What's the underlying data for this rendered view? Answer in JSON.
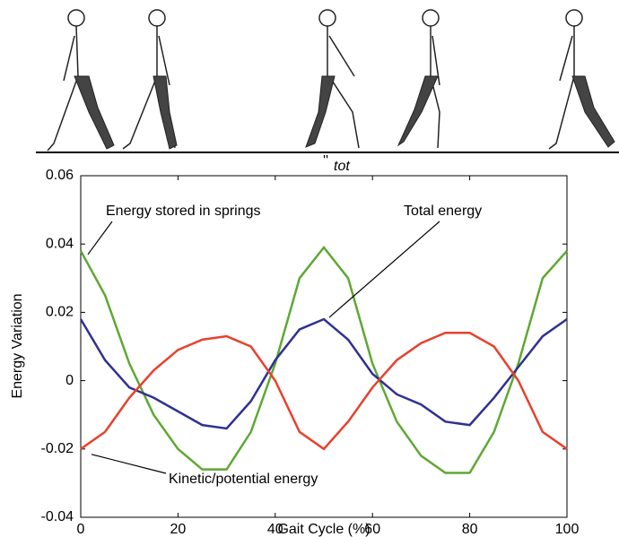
{
  "chart_data": {
    "type": "line",
    "title_fragment": "tot",
    "xlabel": "Gait Cycle (%)",
    "ylabel": "Energy Variation",
    "x": [
      0,
      5,
      10,
      15,
      20,
      25,
      30,
      35,
      40,
      45,
      50,
      55,
      60,
      65,
      70,
      75,
      80,
      85,
      90,
      95,
      100
    ],
    "series": [
      {
        "name": "Energy stored in springs",
        "color": "#5ea832",
        "values": [
          0.038,
          0.025,
          0.005,
          -0.01,
          -0.02,
          -0.026,
          -0.026,
          -0.015,
          0.005,
          0.03,
          0.039,
          0.03,
          0.005,
          -0.012,
          -0.022,
          -0.027,
          -0.027,
          -0.015,
          0.005,
          0.03,
          0.038
        ]
      },
      {
        "name": "Total energy",
        "color": "#2e3192",
        "values": [
          0.018,
          0.006,
          -0.002,
          -0.005,
          -0.009,
          -0.013,
          -0.014,
          -0.006,
          0.006,
          0.015,
          0.018,
          0.012,
          0.002,
          -0.004,
          -0.007,
          -0.012,
          -0.013,
          -0.005,
          0.004,
          0.013,
          0.018
        ]
      },
      {
        "name": "Kinetic/potential energy",
        "color": "#e8412c",
        "values": [
          -0.02,
          -0.015,
          -0.005,
          0.003,
          0.009,
          0.012,
          0.013,
          0.01,
          0.0,
          -0.015,
          -0.02,
          -0.012,
          -0.002,
          0.006,
          0.011,
          0.014,
          0.014,
          0.01,
          0.0,
          -0.015,
          -0.02
        ]
      }
    ],
    "xlim": [
      0,
      100
    ],
    "xticks": [
      0,
      20,
      40,
      60,
      80,
      100
    ],
    "ylim": [
      -0.04,
      0.06
    ],
    "yticks": [
      -0.04,
      -0.02,
      0,
      0.02,
      0.04,
      0.06
    ]
  }
}
